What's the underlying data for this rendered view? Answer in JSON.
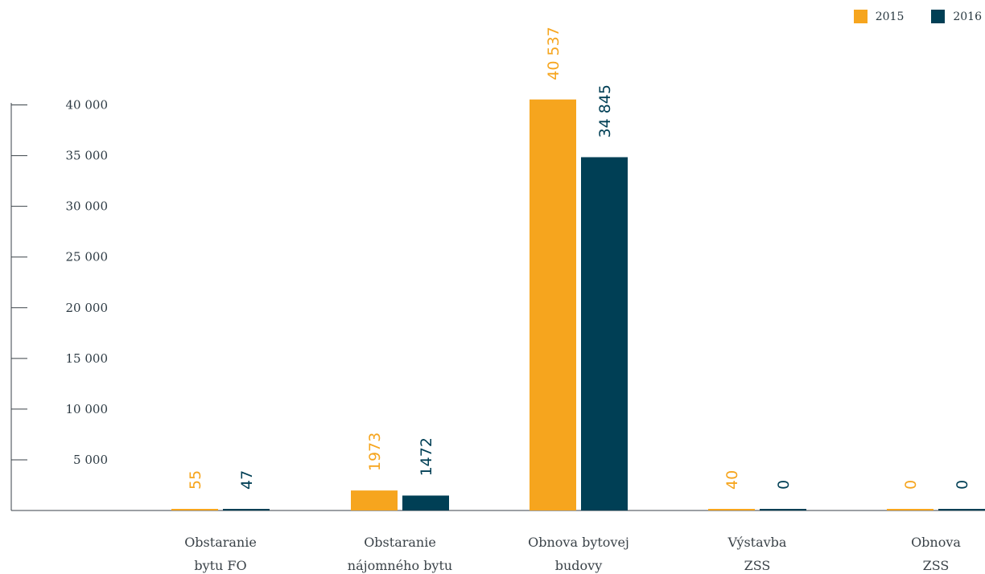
{
  "legend": {
    "series_2015": "2015",
    "series_2016": "2016"
  },
  "colors": {
    "2015": "#F6A51E",
    "2016": "#003F55",
    "axis": "#3a4248"
  },
  "chart_data": {
    "type": "bar",
    "categories": [
      [
        "Obstaranie",
        "bytu FO"
      ],
      [
        "Obstaranie",
        "nájomného bytu"
      ],
      [
        "Obnova bytovej",
        "budovy"
      ],
      [
        "Výstavba",
        "ZSS"
      ],
      [
        "Obnova",
        "ZSS"
      ]
    ],
    "series": [
      {
        "name": "2015",
        "values": [
          55,
          1973,
          40537,
          40,
          0
        ],
        "labels": [
          "55",
          "1973",
          "40 537",
          "40",
          "0"
        ]
      },
      {
        "name": "2016",
        "values": [
          47,
          1472,
          34845,
          0,
          0
        ],
        "labels": [
          "47",
          "1472",
          "34 845",
          "0",
          "0"
        ]
      }
    ],
    "yticks": [
      {
        "value": 5000,
        "label": "5 000"
      },
      {
        "value": 10000,
        "label": "10 000"
      },
      {
        "value": 15000,
        "label": "15 000"
      },
      {
        "value": 20000,
        "label": "20 000"
      },
      {
        "value": 25000,
        "label": "25 000"
      },
      {
        "value": 30000,
        "label": "30 000"
      },
      {
        "value": 35000,
        "label": "35 000"
      },
      {
        "value": 40000,
        "label": "40 000"
      }
    ],
    "ylim": [
      0,
      40000
    ],
    "legend_position": "top-right",
    "grid": false
  }
}
